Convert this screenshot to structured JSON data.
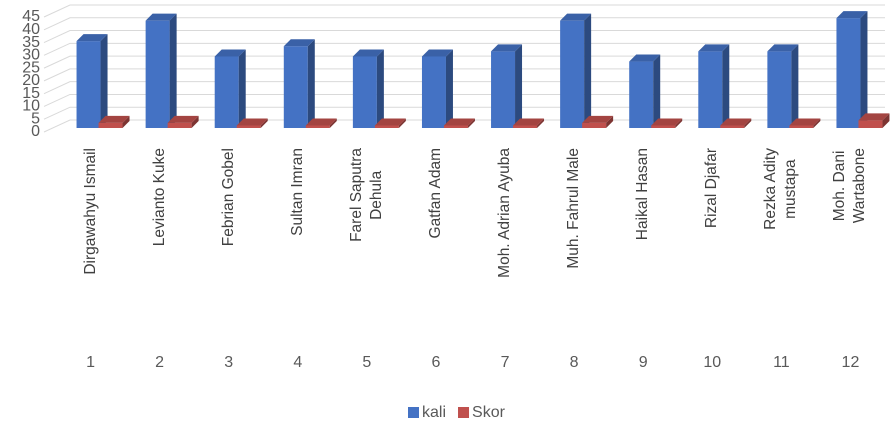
{
  "chart_data": {
    "type": "bar3d",
    "groups": [
      "1",
      "2",
      "3",
      "4",
      "5",
      "6",
      "7",
      "8",
      "9",
      "10",
      "11",
      "12"
    ],
    "categories": [
      "Dirgawahyu Ismail",
      "Levianto Kuke",
      "Febrian Gobel",
      "Sultan Imran",
      "Farel Saputra\nDehula",
      "Gatfan Adam",
      "Moh. Adrian Ayuba",
      "Muh. Fahrul Male",
      "Haikal Hasan",
      "Rizal Djafar",
      "Rezka Adity\nmustapa",
      "Moh. Dani\nWartabone"
    ],
    "series": [
      {
        "name": "kali",
        "color": "#4472c4",
        "values": [
          34,
          42,
          28,
          32,
          28,
          28,
          30,
          42,
          26,
          30,
          30,
          43
        ]
      },
      {
        "name": "Skor",
        "color": "#c0504d",
        "values": [
          2,
          2,
          1,
          1,
          1,
          1,
          1,
          2,
          1,
          1,
          1,
          3
        ]
      }
    ],
    "ylim": [
      0,
      45
    ],
    "yticks": [
      0,
      5,
      10,
      15,
      20,
      25,
      30,
      35,
      40,
      45
    ],
    "grid": true,
    "legend": "bottom"
  }
}
